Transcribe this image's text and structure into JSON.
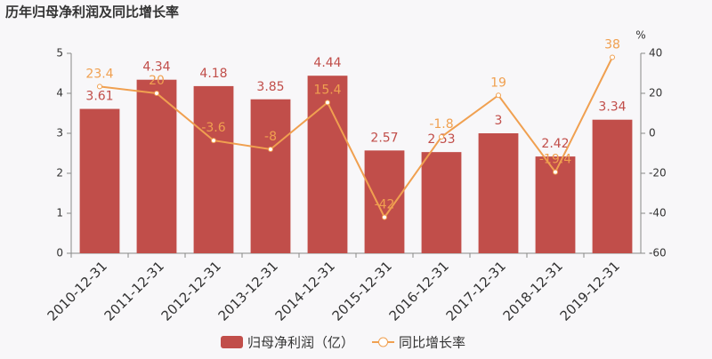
{
  "chart_data": {
    "type": "bar",
    "title": "历年归母净利润及同比增长率",
    "categories": [
      "2010-12-31",
      "2011-12-31",
      "2012-12-31",
      "2013-12-31",
      "2014-12-31",
      "2015-12-31",
      "2016-12-31",
      "2017-12-31",
      "2018-12-31",
      "2019-12-31"
    ],
    "series": [
      {
        "name": "归母净利润（亿）",
        "type": "bar",
        "color": "#c14e4a",
        "values": [
          3.61,
          4.34,
          4.18,
          3.85,
          4.44,
          2.57,
          2.53,
          3,
          2.42,
          3.34
        ]
      },
      {
        "name": "同比增长率",
        "type": "line",
        "axis": "y2",
        "color": "#f0a050",
        "values": [
          23.4,
          20,
          -3.6,
          -8,
          15.4,
          -42,
          -1.8,
          19,
          -19.4,
          38
        ]
      }
    ],
    "ylim": [
      0,
      5
    ],
    "yticks": [
      0,
      1,
      2,
      3,
      4,
      5
    ],
    "y2lim": [
      -60,
      40
    ],
    "y2ticks": [
      -60,
      -40,
      -20,
      0,
      20,
      40
    ],
    "y2label": "%",
    "grid": false
  }
}
